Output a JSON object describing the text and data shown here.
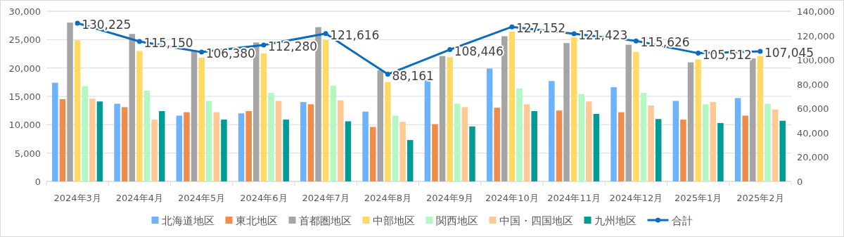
{
  "chart_data": {
    "type": "bar",
    "categories": [
      "2024年3月",
      "2024年4月",
      "2024年5月",
      "2024年6月",
      "2024年7月",
      "2024年8月",
      "2024年9月",
      "2024年10月",
      "2024年11月",
      "2024年12月",
      "2025年1月",
      "2025年2月"
    ],
    "series": [
      {
        "name": "北海道地区",
        "color": "#6cb3fc",
        "values": [
          17400,
          13700,
          11600,
          12000,
          14000,
          12300,
          17900,
          19900,
          17700,
          16600,
          14200,
          14700
        ]
      },
      {
        "name": "東北地区",
        "color": "#ef8b4b",
        "values": [
          14500,
          13100,
          12200,
          12400,
          13600,
          9600,
          10100,
          13000,
          12500,
          12200,
          10900,
          11600
        ]
      },
      {
        "name": "首都圏地区",
        "color": "#a5a5a5",
        "values": [
          28000,
          26000,
          23100,
          24500,
          27200,
          19600,
          22100,
          25600,
          24400,
          24100,
          21000,
          21700
        ]
      },
      {
        "name": "中部地区",
        "color": "#ffd966",
        "values": [
          24900,
          23000,
          21800,
          22600,
          24900,
          17500,
          21900,
          26400,
          25400,
          22800,
          21500,
          22100
        ]
      },
      {
        "name": "関西地区",
        "color": "#b3f7c3",
        "values": [
          16800,
          16000,
          14200,
          15600,
          16900,
          11600,
          13700,
          16400,
          15400,
          15600,
          13600,
          13700
        ]
      },
      {
        "name": "中国・四国地区",
        "color": "#ffc996",
        "values": [
          14600,
          10900,
          12200,
          14200,
          14300,
          10500,
          13100,
          13600,
          14100,
          13400,
          14000,
          12700
        ]
      },
      {
        "name": "九州地区",
        "color": "#009b94",
        "values": [
          14100,
          12400,
          10900,
          10900,
          10600,
          7300,
          9700,
          12400,
          11900,
          11000,
          10300,
          10700
        ]
      },
      {
        "name": "合計",
        "type": "line",
        "axis": "y2",
        "color": "#0b6bbd",
        "marker": "circle",
        "values": [
          130225,
          115150,
          106380,
          112280,
          121616,
          88161,
          108446,
          127152,
          121423,
          115626,
          105512,
          107045
        ],
        "value_labels": [
          "130,225",
          "115,150",
          "106,380",
          "112,280",
          "121,616",
          "88,161",
          "108,446",
          "127,152",
          "121,423",
          "115,626",
          "105,512",
          "107,045"
        ]
      }
    ],
    "ylim": [
      0,
      30000
    ],
    "yticks": [
      0,
      {
        "value": 5000,
        "label": "5,000"
      },
      {
        "value": 10000,
        "label": "10,000"
      },
      {
        "value": 15000,
        "label": "15,000"
      },
      {
        "value": 20000,
        "label": "20,000"
      },
      {
        "value": 25000,
        "label": "25,000"
      },
      {
        "value": 30000,
        "label": "30,000"
      }
    ],
    "y2lim": [
      0,
      140000
    ],
    "y2ticks": [
      0,
      {
        "value": 20000,
        "label": "20,000"
      },
      {
        "value": 40000,
        "label": "40,000"
      },
      {
        "value": 60000,
        "label": "60,000"
      },
      {
        "value": 80000,
        "label": "80,000"
      },
      {
        "value": 100000,
        "label": "100,000"
      },
      {
        "value": 120000,
        "label": "120,000"
      },
      {
        "value": 140000,
        "label": "140,000"
      }
    ],
    "grid": "y",
    "legend": "bottom"
  }
}
